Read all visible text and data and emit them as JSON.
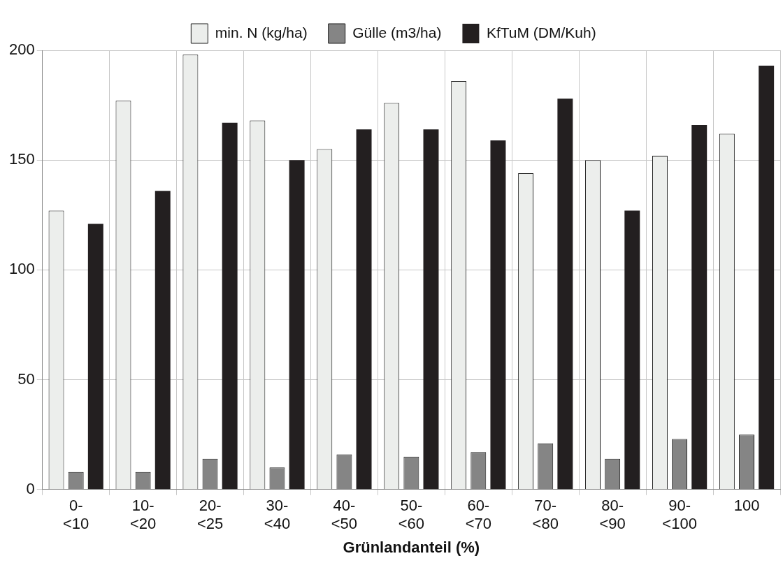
{
  "chart_data": {
    "type": "bar",
    "xlabel": "Grünlandanteil (%)",
    "categories": [
      "0- <10",
      "10- <20",
      "20- <25",
      "30- <40",
      "40- <50",
      "50- <60",
      "60- <70",
      "70- <80",
      "80- <90",
      "90- <100",
      "100"
    ],
    "series": [
      {
        "name": "min. N (kg/ha)",
        "color": "#eceeec",
        "values": [
          127,
          177,
          198,
          168,
          155,
          176,
          186,
          144,
          150,
          152,
          162
        ]
      },
      {
        "name": "Gülle (m3/ha)",
        "color": "#858585",
        "values": [
          8,
          8,
          14,
          10,
          16,
          15,
          17,
          21,
          14,
          23,
          25
        ]
      },
      {
        "name": "KfTuM (DM/Kuh)",
        "color": "#231f20",
        "values": [
          121,
          136,
          167,
          150,
          164,
          164,
          159,
          178,
          127,
          166,
          193
        ]
      }
    ],
    "ylim": [
      0,
      200
    ],
    "yticks": [
      0,
      50,
      100,
      150,
      200
    ],
    "grid": true,
    "legend": "top"
  }
}
